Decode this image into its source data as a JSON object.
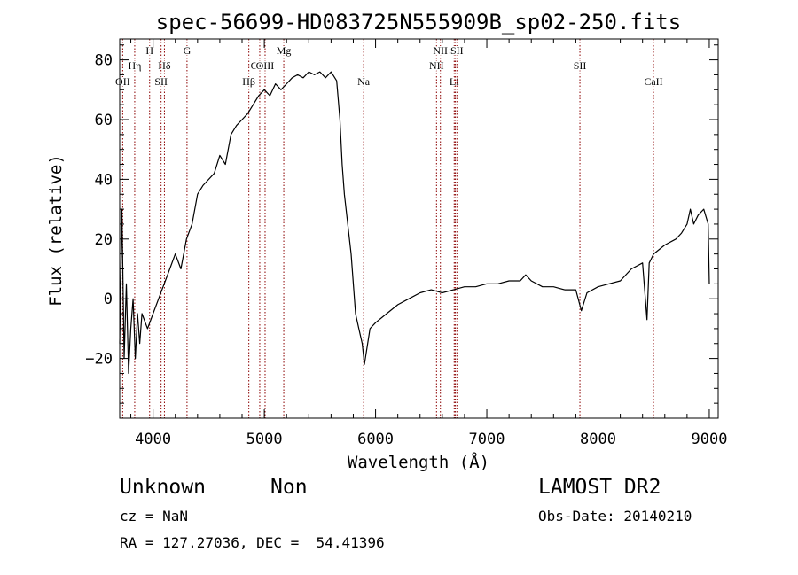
{
  "chart_data": {
    "type": "line",
    "title": "spec-56699-HD083725N555909B_sp02-250.fits",
    "xlabel": "Wavelength (Å)",
    "ylabel": "Flux (relative)",
    "xlim": [
      3700,
      9080
    ],
    "ylim": [
      -40,
      87
    ],
    "xticks": [
      4000,
      5000,
      6000,
      7000,
      8000,
      9000
    ],
    "xtick_labels": [
      "4000",
      "5000",
      "6000",
      "7000",
      "8000",
      "9000"
    ],
    "yticks": [
      -20,
      0,
      20,
      40,
      60,
      80
    ],
    "ytick_labels": [
      "−20",
      "0",
      "20",
      "40",
      "60",
      "80"
    ],
    "grid": false,
    "line_color": "#000000",
    "marker_color": "#8b0000",
    "series": [
      {
        "x": [
          3700,
          3720,
          3740,
          3760,
          3780,
          3800,
          3820,
          3840,
          3860,
          3880,
          3900,
          3950,
          4000,
          4050,
          4100,
          4150,
          4200,
          4250,
          4300,
          4350,
          4400,
          4450,
          4500,
          4550,
          4600,
          4650,
          4700,
          4750,
          4800,
          4850,
          4900,
          4950,
          5000,
          5050,
          5100,
          5150,
          5200,
          5250,
          5300,
          5350,
          5400,
          5450,
          5500,
          5550,
          5600,
          5650,
          5680,
          5700,
          5720,
          5750,
          5780,
          5800,
          5820,
          5850,
          5880,
          5900,
          5950,
          6000,
          6100,
          6200,
          6300,
          6400,
          6500,
          6600,
          6700,
          6800,
          6900,
          7000,
          7100,
          7200,
          7300,
          7350,
          7400,
          7500,
          7600,
          7700,
          7800,
          7850,
          7900,
          8000,
          8100,
          8200,
          8300,
          8400,
          8440,
          8460,
          8500,
          8600,
          8700,
          8750,
          8800,
          8830,
          8860,
          8900,
          8950,
          8990,
          9000
        ],
        "y": [
          -15,
          30,
          -20,
          5,
          -25,
          -10,
          0,
          -20,
          -5,
          -15,
          -5,
          -10,
          -5,
          0,
          5,
          10,
          15,
          10,
          20,
          25,
          35,
          38,
          40,
          42,
          48,
          45,
          55,
          58,
          60,
          62,
          65,
          68,
          70,
          68,
          72,
          70,
          72,
          74,
          75,
          74,
          76,
          75,
          76,
          74,
          76,
          73,
          60,
          45,
          35,
          25,
          15,
          5,
          -5,
          -10,
          -15,
          -22,
          -10,
          -8,
          -5,
          -2,
          0,
          2,
          3,
          2,
          3,
          4,
          4,
          5,
          5,
          6,
          6,
          8,
          6,
          4,
          4,
          3,
          3,
          -4,
          2,
          4,
          5,
          6,
          10,
          12,
          -7,
          12,
          15,
          18,
          20,
          22,
          25,
          30,
          25,
          28,
          30,
          25,
          5
        ]
      }
    ],
    "line_markers": [
      {
        "label": "OII",
        "wavelength": 3727,
        "tier": 3
      },
      {
        "label": "Hη",
        "wavelength": 3835,
        "tier": 2
      },
      {
        "label": "H",
        "wavelength": 3969,
        "tier": 1
      },
      {
        "label": "Hδ",
        "wavelength": 4102,
        "tier": 2
      },
      {
        "label": "SII",
        "wavelength": 4072,
        "tier": 3
      },
      {
        "label": "G",
        "wavelength": 4305,
        "tier": 1
      },
      {
        "label": "Hβ",
        "wavelength": 4861,
        "tier": 3
      },
      {
        "label": "OIII",
        "wavelength": 4959,
        "tier": 2
      },
      {
        "label": "OIII",
        "wavelength": 5007,
        "tier": 2
      },
      {
        "label": "Mg",
        "wavelength": 5175,
        "tier": 1
      },
      {
        "label": "Na",
        "wavelength": 5893,
        "tier": 3
      },
      {
        "label": "NII",
        "wavelength": 6548,
        "tier": 2
      },
      {
        "label": "NII",
        "wavelength": 6583,
        "tier": 1
      },
      {
        "label": "Li",
        "wavelength": 6707,
        "tier": 3
      },
      {
        "label": "SII",
        "wavelength": 6716,
        "tier": 1
      },
      {
        "label": "SII",
        "wavelength": 6731,
        "tier": 1
      },
      {
        "label": "SII",
        "wavelength": 7837,
        "tier": 2
      },
      {
        "label": "CaII",
        "wavelength": 8498,
        "tier": 3
      }
    ]
  },
  "info": {
    "object_class": "Unknown",
    "subclass": "Non",
    "survey": "LAMOST DR2",
    "redshift_line": "cz = NaN",
    "obs_date_line": "Obs-Date: 20140210",
    "coords_line": "RA = 127.27036, DEC =  54.41396"
  }
}
